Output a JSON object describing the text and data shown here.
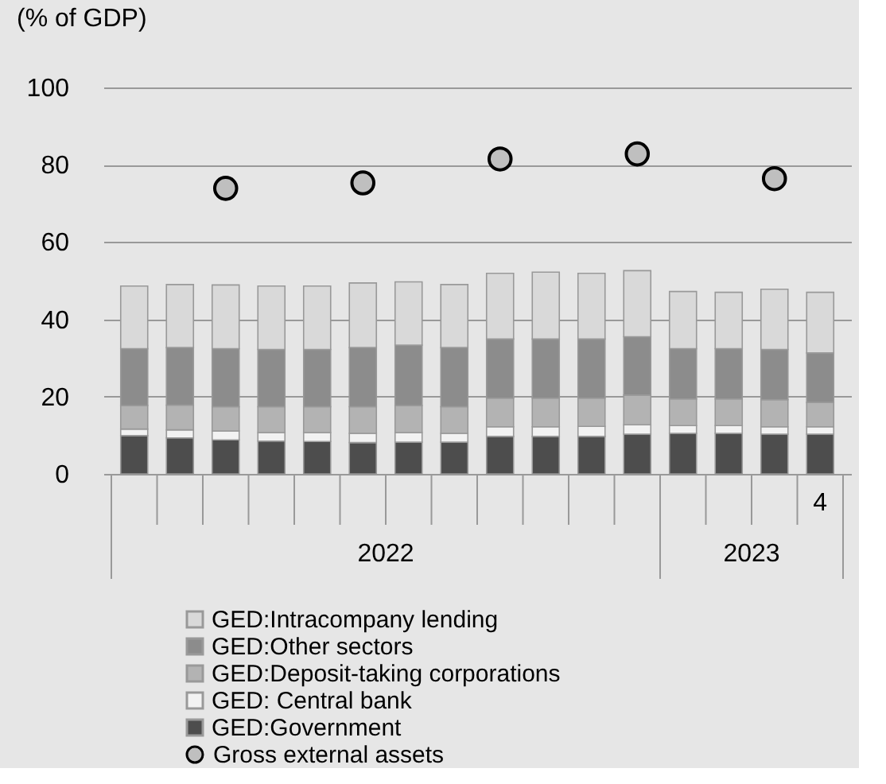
{
  "chart_data": {
    "type": "bar",
    "stacked": true,
    "ylabel": "(% of GDP)",
    "categories": [
      null,
      null,
      null,
      null,
      null,
      null,
      null,
      null,
      null,
      null,
      null,
      null,
      null,
      null,
      null,
      "4"
    ],
    "series": [
      {
        "name": "GED:Government",
        "color": "#4d4d4d",
        "values": [
          9.9,
          9.3,
          8.8,
          8.5,
          8.4,
          8.1,
          8.2,
          8.2,
          9.7,
          9.7,
          9.7,
          10.3,
          10.5,
          10.5,
          10.3,
          10.3
        ]
      },
      {
        "name": "GED: Central bank",
        "color": "#f2f2f2",
        "values": [
          1.7,
          2.1,
          2.3,
          2.2,
          2.3,
          2.4,
          2.5,
          2.3,
          2.5,
          2.5,
          2.6,
          2.4,
          2.0,
          2.0,
          1.9,
          1.9
        ]
      },
      {
        "name": "GED:Deposit-taking corporations",
        "color": "#b3b3b3",
        "values": [
          6.1,
          6.4,
          6.3,
          6.7,
          6.7,
          6.9,
          7.0,
          6.9,
          7.4,
          7.4,
          7.3,
          7.7,
          6.9,
          6.9,
          7.0,
          6.3
        ]
      },
      {
        "name": "GED:Other sectors",
        "color": "#8c8c8c",
        "values": [
          14.7,
          14.9,
          15.0,
          14.8,
          14.8,
          15.3,
          15.6,
          15.3,
          15.3,
          15.3,
          15.3,
          15.1,
          13.0,
          13.0,
          13.0,
          12.8
        ]
      },
      {
        "name": "GED:Intracompany lending",
        "color": "#d9d9d9",
        "values": [
          16.2,
          16.3,
          16.5,
          16.4,
          16.4,
          16.7,
          16.4,
          16.3,
          17.0,
          17.3,
          17.0,
          17.1,
          14.8,
          14.6,
          15.6,
          15.7
        ]
      },
      {
        "name": "Gross external assets",
        "type": "scatter",
        "marker": "circle",
        "color": "#bfbfbf",
        "values": [
          null,
          null,
          73.9,
          null,
          null,
          75.3,
          null,
          null,
          81.5,
          null,
          null,
          82.8,
          null,
          null,
          76.4,
          null
        ]
      }
    ],
    "ylim": [
      0,
      100
    ],
    "yticks": [
      0,
      20,
      40,
      60,
      80,
      100
    ],
    "grid": "y",
    "legend": "bottom",
    "annotations": [
      "2022",
      "2023"
    ]
  }
}
